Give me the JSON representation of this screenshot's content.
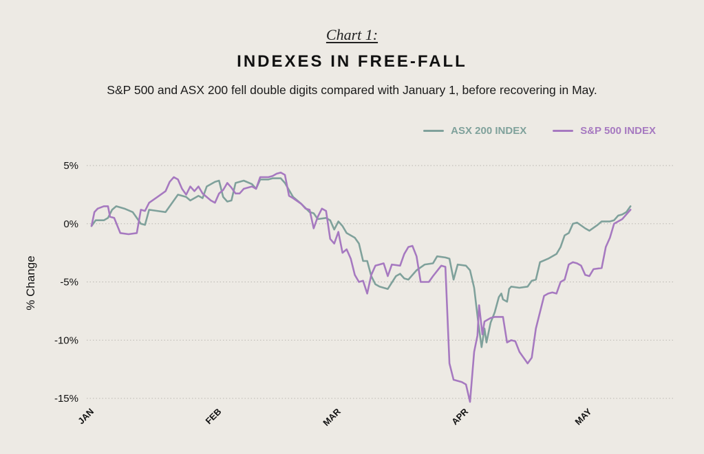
{
  "header": {
    "kicker": "Chart 1:",
    "title": "INDEXES IN FREE-FALL",
    "subtitle": "S&P 500 and ASX 200 fell double digits compared with January 1, before recovering in May."
  },
  "colors": {
    "background": "#edeae4",
    "asx": "#7fa19b",
    "sp": "#a679c0",
    "grid": "#b9b6b0"
  },
  "chart_data": {
    "type": "line",
    "title": "INDEXES IN FREE-FALL",
    "xlabel": "",
    "ylabel": "% Change",
    "x_range": [
      0,
      140
    ],
    "ylim": [
      -15,
      5
    ],
    "y_ticks": [
      5,
      0,
      -5,
      -10,
      -15
    ],
    "y_tick_labels": [
      "5%",
      "0%",
      "-5%",
      "-10%",
      "-15%"
    ],
    "x_ticks": [
      {
        "label": "JAN",
        "day": 0
      },
      {
        "label": "FEB",
        "day": 31
      },
      {
        "label": "MAR",
        "day": 60
      },
      {
        "label": "APR",
        "day": 91
      },
      {
        "label": "MAY",
        "day": 121
      }
    ],
    "grid": "horizontal dotted",
    "legend_position": "top-right",
    "series": [
      {
        "name": "ASX 200 INDEX",
        "points": [
          [
            0,
            -0.2
          ],
          [
            1,
            0.3
          ],
          [
            3,
            0.3
          ],
          [
            4,
            0.5
          ],
          [
            5,
            1.2
          ],
          [
            6,
            1.5
          ],
          [
            8,
            1.3
          ],
          [
            10,
            1.0
          ],
          [
            11,
            0.5
          ],
          [
            12,
            0.0
          ],
          [
            13,
            -0.1
          ],
          [
            14,
            1.2
          ],
          [
            16,
            1.1
          ],
          [
            18,
            1.0
          ],
          [
            20,
            2.0
          ],
          [
            21,
            2.5
          ],
          [
            23,
            2.3
          ],
          [
            24,
            2.0
          ],
          [
            26,
            2.4
          ],
          [
            27,
            2.2
          ],
          [
            28,
            3.2
          ],
          [
            30,
            3.6
          ],
          [
            31,
            3.7
          ],
          [
            32,
            2.3
          ],
          [
            33,
            1.9
          ],
          [
            34,
            2.0
          ],
          [
            35,
            3.5
          ],
          [
            37,
            3.7
          ],
          [
            39,
            3.4
          ],
          [
            40,
            3.0
          ],
          [
            41,
            3.8
          ],
          [
            43,
            3.8
          ],
          [
            44,
            3.9
          ],
          [
            46,
            3.9
          ],
          [
            47,
            3.5
          ],
          [
            49,
            2.3
          ],
          [
            51,
            1.7
          ],
          [
            53,
            1.0
          ],
          [
            54,
            0.9
          ],
          [
            55,
            0.4
          ],
          [
            57,
            0.5
          ],
          [
            58,
            0.3
          ],
          [
            59,
            -0.5
          ],
          [
            60,
            0.2
          ],
          [
            61,
            -0.2
          ],
          [
            62,
            -0.8
          ],
          [
            64,
            -1.2
          ],
          [
            65,
            -1.7
          ],
          [
            66,
            -3.2
          ],
          [
            67,
            -3.2
          ],
          [
            68,
            -4.5
          ],
          [
            69,
            -5.2
          ],
          [
            70,
            -5.4
          ],
          [
            72,
            -5.6
          ],
          [
            74,
            -4.5
          ],
          [
            75,
            -4.3
          ],
          [
            76,
            -4.7
          ],
          [
            77,
            -4.8
          ],
          [
            79,
            -4.0
          ],
          [
            81,
            -3.5
          ],
          [
            83,
            -3.4
          ],
          [
            84,
            -2.8
          ],
          [
            86,
            -2.9
          ],
          [
            87,
            -3.0
          ],
          [
            88,
            -4.8
          ],
          [
            89,
            -3.5
          ],
          [
            91,
            -3.6
          ],
          [
            92,
            -4.0
          ],
          [
            93,
            -5.5
          ],
          [
            94,
            -8.5
          ],
          [
            94.8,
            -10.6
          ],
          [
            95.5,
            -9.0
          ],
          [
            96,
            -10.2
          ],
          [
            97,
            -8.5
          ],
          [
            98,
            -7.6
          ],
          [
            99,
            -6.3
          ],
          [
            99.6,
            -6.0
          ],
          [
            100,
            -6.5
          ],
          [
            101,
            -6.7
          ],
          [
            101.5,
            -5.6
          ],
          [
            102,
            -5.4
          ],
          [
            104,
            -5.5
          ],
          [
            106,
            -5.4
          ],
          [
            107,
            -4.9
          ],
          [
            108,
            -4.8
          ],
          [
            109,
            -3.3
          ],
          [
            111,
            -3.0
          ],
          [
            113,
            -2.6
          ],
          [
            114,
            -2.0
          ],
          [
            115,
            -1.0
          ],
          [
            116,
            -0.8
          ],
          [
            117,
            0.0
          ],
          [
            118,
            0.1
          ],
          [
            120,
            -0.4
          ],
          [
            121,
            -0.6
          ],
          [
            123,
            -0.1
          ],
          [
            124,
            0.2
          ],
          [
            126,
            0.2
          ],
          [
            127,
            0.3
          ],
          [
            128,
            0.7
          ],
          [
            129,
            0.8
          ],
          [
            130,
            1.0
          ],
          [
            131,
            1.5
          ]
        ]
      },
      {
        "name": "S&P 500 INDEX",
        "points": [
          [
            0,
            -0.2
          ],
          [
            0.7,
            1.0
          ],
          [
            1.5,
            1.3
          ],
          [
            3,
            1.5
          ],
          [
            4,
            1.5
          ],
          [
            4.5,
            0.6
          ],
          [
            5.5,
            0.5
          ],
          [
            7,
            -0.8
          ],
          [
            9,
            -0.9
          ],
          [
            11,
            -0.8
          ],
          [
            12,
            1.2
          ],
          [
            13,
            1.1
          ],
          [
            14,
            1.8
          ],
          [
            16,
            2.3
          ],
          [
            18,
            2.8
          ],
          [
            19,
            3.6
          ],
          [
            20,
            4.0
          ],
          [
            21,
            3.8
          ],
          [
            22,
            3.0
          ],
          [
            23,
            2.5
          ],
          [
            24,
            3.2
          ],
          [
            25,
            2.8
          ],
          [
            26,
            3.2
          ],
          [
            27,
            2.6
          ],
          [
            29,
            2.0
          ],
          [
            30,
            1.8
          ],
          [
            31,
            2.6
          ],
          [
            32,
            2.9
          ],
          [
            33,
            3.5
          ],
          [
            34,
            3.1
          ],
          [
            35,
            2.6
          ],
          [
            36,
            2.6
          ],
          [
            37,
            3.0
          ],
          [
            39,
            3.2
          ],
          [
            40,
            3.0
          ],
          [
            41,
            4.0
          ],
          [
            43,
            4.0
          ],
          [
            44,
            4.1
          ],
          [
            45,
            4.3
          ],
          [
            46,
            4.4
          ],
          [
            47,
            4.2
          ],
          [
            48,
            2.4
          ],
          [
            49,
            2.2
          ],
          [
            51,
            1.7
          ],
          [
            52,
            1.3
          ],
          [
            53,
            1.2
          ],
          [
            54,
            -0.4
          ],
          [
            55,
            0.6
          ],
          [
            56,
            1.3
          ],
          [
            57,
            1.1
          ],
          [
            58,
            -1.3
          ],
          [
            59,
            -1.7
          ],
          [
            60,
            -0.7
          ],
          [
            61,
            -2.5
          ],
          [
            62,
            -2.2
          ],
          [
            63,
            -3.0
          ],
          [
            64,
            -4.4
          ],
          [
            65,
            -5.0
          ],
          [
            66,
            -4.9
          ],
          [
            67,
            -6.0
          ],
          [
            68,
            -4.4
          ],
          [
            69,
            -3.6
          ],
          [
            70,
            -3.5
          ],
          [
            71,
            -3.4
          ],
          [
            72,
            -4.5
          ],
          [
            73,
            -3.5
          ],
          [
            75,
            -3.6
          ],
          [
            76,
            -2.6
          ],
          [
            77,
            -2.0
          ],
          [
            78,
            -1.9
          ],
          [
            79,
            -2.8
          ],
          [
            80,
            -5.0
          ],
          [
            82,
            -5.0
          ],
          [
            83,
            -4.5
          ],
          [
            85,
            -3.6
          ],
          [
            86,
            -3.7
          ],
          [
            87,
            -12.0
          ],
          [
            88,
            -13.4
          ],
          [
            90,
            -13.6
          ],
          [
            91,
            -13.8
          ],
          [
            92,
            -15.3
          ],
          [
            93,
            -11.0
          ],
          [
            93.8,
            -9.6
          ],
          [
            94.2,
            -7.0
          ],
          [
            95,
            -9.5
          ],
          [
            95.5,
            -8.4
          ],
          [
            97,
            -8.1
          ],
          [
            98,
            -8.0
          ],
          [
            100,
            -8.0
          ],
          [
            101,
            -10.2
          ],
          [
            102,
            -10.0
          ],
          [
            103,
            -10.1
          ],
          [
            104,
            -11.0
          ],
          [
            106,
            -12.0
          ],
          [
            107,
            -11.5
          ],
          [
            108,
            -9.0
          ],
          [
            110,
            -6.2
          ],
          [
            111,
            -6.0
          ],
          [
            112,
            -5.9
          ],
          [
            113,
            -6.0
          ],
          [
            114,
            -5.0
          ],
          [
            115,
            -4.8
          ],
          [
            116,
            -3.5
          ],
          [
            117,
            -3.3
          ],
          [
            118,
            -3.4
          ],
          [
            119,
            -3.6
          ],
          [
            120,
            -4.4
          ],
          [
            121,
            -4.5
          ],
          [
            122,
            -3.9
          ],
          [
            124,
            -3.8
          ],
          [
            125,
            -2.0
          ],
          [
            126,
            -1.2
          ],
          [
            127,
            0.0
          ],
          [
            129,
            0.4
          ],
          [
            130,
            0.8
          ],
          [
            131,
            1.2
          ]
        ]
      }
    ]
  }
}
